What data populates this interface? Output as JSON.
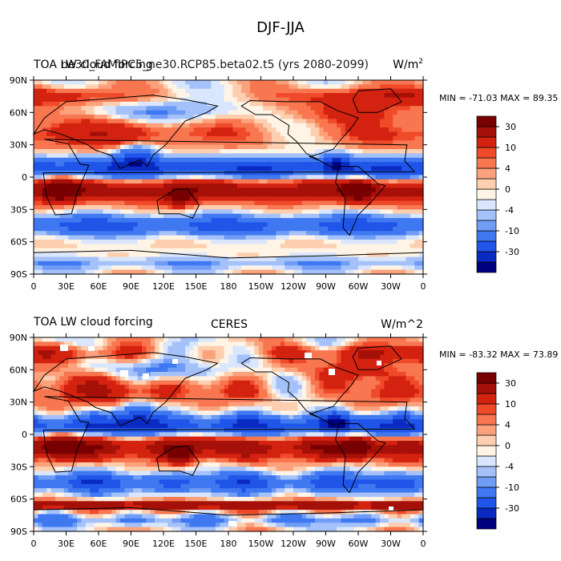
{
  "figure": {
    "title": "DJF-JJA",
    "units_label": "W/m",
    "units_superscript": "2",
    "colorbar_levels": [
      "-30",
      "-10",
      "-4",
      "0",
      "4",
      "10",
      "30"
    ],
    "colorbar_colors": [
      "#000080",
      "#0b2ac2",
      "#1f55e8",
      "#3f78f0",
      "#6f9cf5",
      "#a4c1fa",
      "#d9e6fd",
      "#fff4e6",
      "#fdcfb0",
      "#fba27c",
      "#f87650",
      "#ef4a2a",
      "#d42210",
      "#a51008",
      "#780000"
    ],
    "lat_ticks": [
      "90N",
      "60N",
      "30N",
      "0",
      "30S",
      "60S",
      "90S"
    ],
    "lon_ticks": [
      "0",
      "30E",
      "60E",
      "90E",
      "120E",
      "150E",
      "180",
      "150W",
      "120W",
      "90W",
      "60W",
      "30W",
      "0"
    ]
  },
  "panels": [
    {
      "left_title": "TOA LW cloud forcing",
      "left_title_overlap": "ne30_FAMIPC5_ne30.RCP85.beta02.t5 (yrs 2080-2099)",
      "center_title": "",
      "right_title": "W/m",
      "right_title_sup": "2",
      "minmax": "MIN = -71.03 MAX =  89.35",
      "chart_data": {
        "type": "heatmap",
        "variable": "TOA LW cloud forcing (DJF-JJA)",
        "units": "W/m^2",
        "min": -71.03,
        "max": 89.35,
        "x": [
          "0",
          "30E",
          "60E",
          "90E",
          "120E",
          "150E",
          "180",
          "150W",
          "120W",
          "90W",
          "60W",
          "30W",
          "0"
        ],
        "y": [
          "90N",
          "60N",
          "30N",
          "0",
          "30S",
          "60S",
          "90S"
        ],
        "contour_levels": [
          -40,
          -30,
          -20,
          -10,
          -8,
          -4,
          -2,
          0,
          2,
          4,
          8,
          10,
          20,
          30,
          40
        ]
      }
    },
    {
      "left_title": "TOA LW cloud forcing",
      "left_title_overlap": "",
      "center_title": "CERES",
      "right_title": "W/m^2",
      "right_title_sup": "",
      "minmax": "MIN = -83.32 MAX =  73.89",
      "chart_data": {
        "type": "heatmap",
        "variable": "TOA LW cloud forcing (DJF-JJA)",
        "units": "W/m^2",
        "min": -83.32,
        "max": 73.89,
        "x": [
          "0",
          "30E",
          "60E",
          "90E",
          "120E",
          "150E",
          "180",
          "150W",
          "120W",
          "90W",
          "60W",
          "30W",
          "0"
        ],
        "y": [
          "90N",
          "60N",
          "30N",
          "0",
          "30S",
          "60S",
          "90S"
        ],
        "contour_levels": [
          -40,
          -30,
          -20,
          -10,
          -8,
          -4,
          -2,
          0,
          2,
          4,
          8,
          10,
          20,
          30,
          40
        ]
      }
    }
  ]
}
